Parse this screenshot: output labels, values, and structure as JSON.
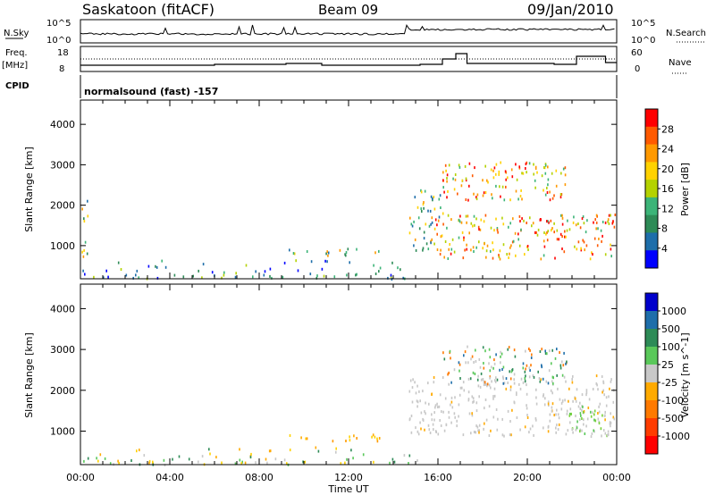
{
  "header": {
    "site": "Saskatoon (fitACF)",
    "beam": "Beam 09",
    "date": "09/Jan/2010"
  },
  "meta_panel": {
    "nsky_label": "N.Sky",
    "nsky_ticks": [
      "10^5",
      "10^0"
    ],
    "nsearch_label": "N.Search",
    "nsearch_ticks": [
      "10^5",
      "10^0"
    ],
    "freq_label": "Freq.",
    "freq_unit": "[MHz]",
    "freq_ticks": [
      "18",
      "8"
    ],
    "nave_label": "Nave",
    "nave_ticks": [
      "60",
      "0"
    ],
    "cpid_label": "CPID",
    "cpid_value": "normalsound (fast) -157"
  },
  "chart_data": [
    {
      "type": "heatmap",
      "name": "power-panel",
      "ylabel": "Slant Range [km]",
      "xlabel": "Time UT",
      "x_ticks": [
        "00:00",
        "04:00",
        "08:00",
        "12:00",
        "16:00",
        "20:00",
        "00:00"
      ],
      "x_range_hours": [
        0,
        24
      ],
      "y_ticks": [
        1000,
        2000,
        3000,
        4000
      ],
      "y_range_km": [
        180,
        4600
      ],
      "colorbar": {
        "label": "Power [dB]",
        "ticks": [
          "28",
          "24",
          "20",
          "16",
          "12",
          "8",
          "4"
        ],
        "colors": [
          "#ff0000",
          "#ff5a00",
          "#ff9900",
          "#ffd200",
          "#b4d200",
          "#3cb478",
          "#2e8b57",
          "#1e6eaa",
          "#0000ff"
        ]
      },
      "regions": [
        {
          "t0": 0.0,
          "t1": 15.1,
          "r0": 200,
          "r1": 700,
          "level": "low"
        },
        {
          "t0": 9.2,
          "t1": 13.4,
          "r0": 780,
          "r1": 950,
          "level": "mid"
        },
        {
          "t0": 0.05,
          "t1": 0.35,
          "r0": 700,
          "r1": 2200,
          "level": "mid"
        },
        {
          "t0": 14.7,
          "t1": 16.2,
          "r0": 900,
          "r1": 2400,
          "level": "mid"
        },
        {
          "t0": 16.2,
          "t1": 21.8,
          "r0": 2150,
          "r1": 3100,
          "level": "high"
        },
        {
          "t0": 15.8,
          "t1": 23.9,
          "r0": 700,
          "r1": 1800,
          "level": "high"
        }
      ]
    },
    {
      "type": "heatmap",
      "name": "velocity-panel",
      "ylabel": "Slant Range [km]",
      "xlabel": "Time UT",
      "x_ticks": [
        "00:00",
        "04:00",
        "08:00",
        "12:00",
        "16:00",
        "20:00",
        "00:00"
      ],
      "x_range_hours": [
        0,
        24
      ],
      "y_ticks": [
        1000,
        2000,
        3000,
        4000
      ],
      "y_range_km": [
        180,
        4600
      ],
      "colorbar": {
        "label": "Velocity [m s^-1]",
        "ticks": [
          "1000",
          "500",
          "100",
          "25",
          "-25",
          "-100",
          "-500",
          "-1000"
        ],
        "colors": [
          "#0000cc",
          "#1e6eaa",
          "#2e8b57",
          "#5ac85a",
          "#c8c8c8",
          "#ffaa00",
          "#ff7a00",
          "#ff3c00",
          "#ff0000"
        ]
      },
      "regions": [
        {
          "t0": 0.0,
          "t1": 15.1,
          "r0": 200,
          "r1": 700,
          "level": "low"
        },
        {
          "t0": 9.2,
          "t1": 13.4,
          "r0": 780,
          "r1": 950,
          "level": "neg"
        },
        {
          "t0": 14.7,
          "t1": 23.9,
          "r0": 900,
          "r1": 2400,
          "level": "zero"
        },
        {
          "t0": 16.2,
          "t1": 21.8,
          "r0": 2150,
          "r1": 3100,
          "level": "pos"
        },
        {
          "t0": 21.8,
          "t1": 23.6,
          "r0": 900,
          "r1": 1700,
          "level": "green"
        }
      ]
    }
  ]
}
